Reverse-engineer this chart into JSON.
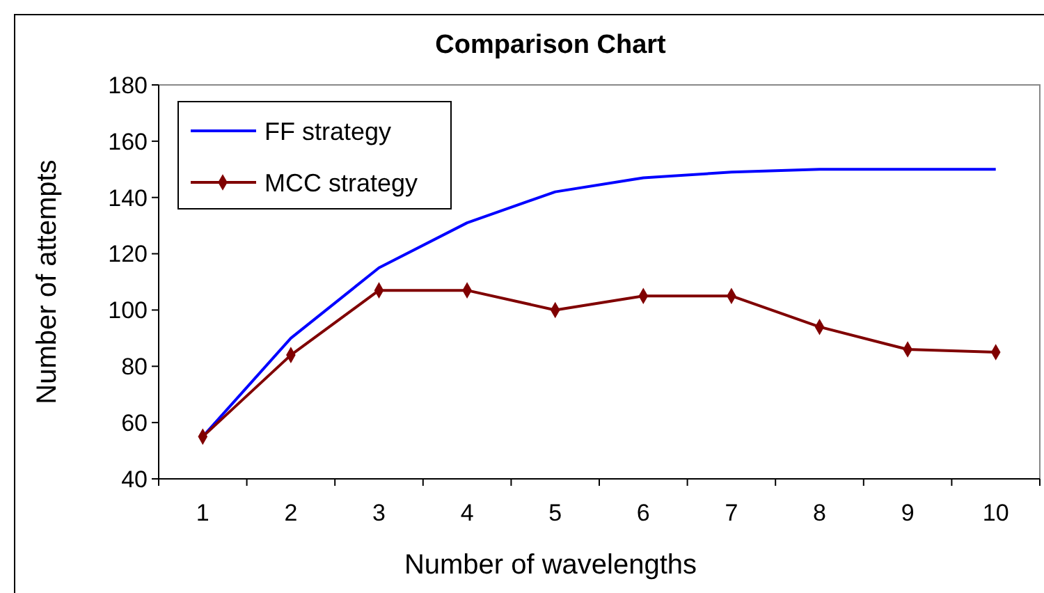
{
  "chart_data": {
    "type": "line",
    "title": "Comparison Chart",
    "xlabel": "Number of wavelengths",
    "ylabel": "Number of attempts",
    "categories": [
      "1",
      "2",
      "3",
      "4",
      "5",
      "6",
      "7",
      "8",
      "9",
      "10"
    ],
    "series": [
      {
        "name": "FF strategy",
        "color": "#0000ff",
        "values": [
          55,
          90,
          115,
          131,
          142,
          147,
          149,
          150,
          150,
          150
        ],
        "marker": "none"
      },
      {
        "name": "MCC strategy",
        "color": "#800000",
        "values": [
          55,
          84,
          107,
          107,
          100,
          105,
          105,
          94,
          86,
          85
        ],
        "marker": "diamond"
      }
    ],
    "ylim": [
      40,
      180
    ],
    "yticks": [
      40,
      60,
      80,
      100,
      120,
      140,
      160,
      180
    ],
    "grid": false,
    "legend": "top left"
  }
}
